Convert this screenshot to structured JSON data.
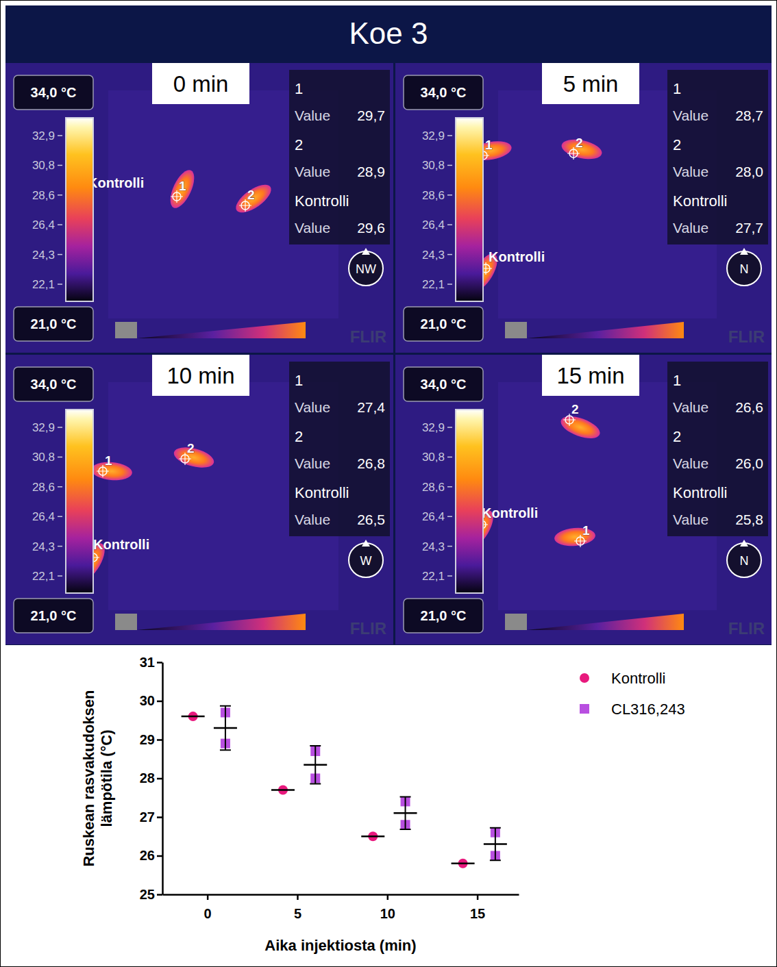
{
  "title": "Koe 3",
  "thermal_panels": [
    {
      "time": "0 min",
      "scale_max": "34,0 °C",
      "scale_min": "21,0 °C",
      "colorbar_ticks": [
        "32,9",
        "30,8",
        "28,6",
        "26,4",
        "24,3",
        "22,1"
      ],
      "readings": [
        {
          "label": "1",
          "name": "Value",
          "value": "29,7"
        },
        {
          "label": "2",
          "name": "Value",
          "value": "28,9"
        },
        {
          "label": "Kontrolli",
          "name": "Value",
          "value": "29,6"
        }
      ],
      "compass": "NW",
      "logo": "FLIR"
    },
    {
      "time": "5 min",
      "scale_max": "34,0 °C",
      "scale_min": "21,0 °C",
      "colorbar_ticks": [
        "32,9",
        "30,8",
        "28,6",
        "26,4",
        "24,3",
        "22,1"
      ],
      "readings": [
        {
          "label": "1",
          "name": "Value",
          "value": "28,7"
        },
        {
          "label": "2",
          "name": "Value",
          "value": "28,0"
        },
        {
          "label": "Kontrolli",
          "name": "Value",
          "value": "27,7"
        }
      ],
      "compass": "N",
      "logo": "FLIR"
    },
    {
      "time": "10 min",
      "scale_max": "34,0 °C",
      "scale_min": "21,0 °C",
      "colorbar_ticks": [
        "32,9",
        "30,8",
        "28,6",
        "26,4",
        "24,3",
        "22,1"
      ],
      "readings": [
        {
          "label": "1",
          "name": "Value",
          "value": "27,4"
        },
        {
          "label": "2",
          "name": "Value",
          "value": "26,8"
        },
        {
          "label": "Kontrolli",
          "name": "Value",
          "value": "26,5"
        }
      ],
      "compass": "W",
      "logo": "FLIR"
    },
    {
      "time": "15 min",
      "scale_max": "34,0 °C",
      "scale_min": "21,0 °C",
      "colorbar_ticks": [
        "32,9",
        "30,8",
        "28,6",
        "26,4",
        "24,3",
        "22,1"
      ],
      "readings": [
        {
          "label": "1",
          "name": "Value",
          "value": "26,6"
        },
        {
          "label": "2",
          "name": "Value",
          "value": "26,0"
        },
        {
          "label": "Kontrolli",
          "name": "Value",
          "value": "25,8"
        }
      ],
      "compass": "N",
      "logo": "FLIR"
    }
  ],
  "chart_data": {
    "type": "scatter",
    "xlabel": "Aika injektiosta (min)",
    "ylabel": "Ruskean rasvakudoksen lämpötila (°C)",
    "xlim": [
      -2.5,
      17.3
    ],
    "xticks": [
      0,
      5,
      10,
      15
    ],
    "ylim": [
      25,
      31
    ],
    "yticks": [
      25,
      26,
      27,
      28,
      29,
      30,
      31
    ],
    "legend": "right",
    "series": [
      {
        "name": "Kontrolli",
        "color": "#e8197d",
        "marker": "circle",
        "x": [
          -0.8,
          4.2,
          9.2,
          14.2
        ],
        "values": [
          29.6,
          27.7,
          26.5,
          25.8
        ]
      },
      {
        "name": "CL316,243",
        "color": "#b84fe0",
        "marker": "square",
        "x": [
          1,
          6,
          11,
          16
        ],
        "values": [
          29.3,
          28.35,
          27.1,
          26.3
        ],
        "error": [
          0.57,
          0.49,
          0.42,
          0.42
        ],
        "points": [
          [
            29.7,
            28.9
          ],
          [
            28.7,
            28.0
          ],
          [
            27.4,
            26.8
          ],
          [
            26.6,
            26.0
          ]
        ]
      }
    ]
  }
}
